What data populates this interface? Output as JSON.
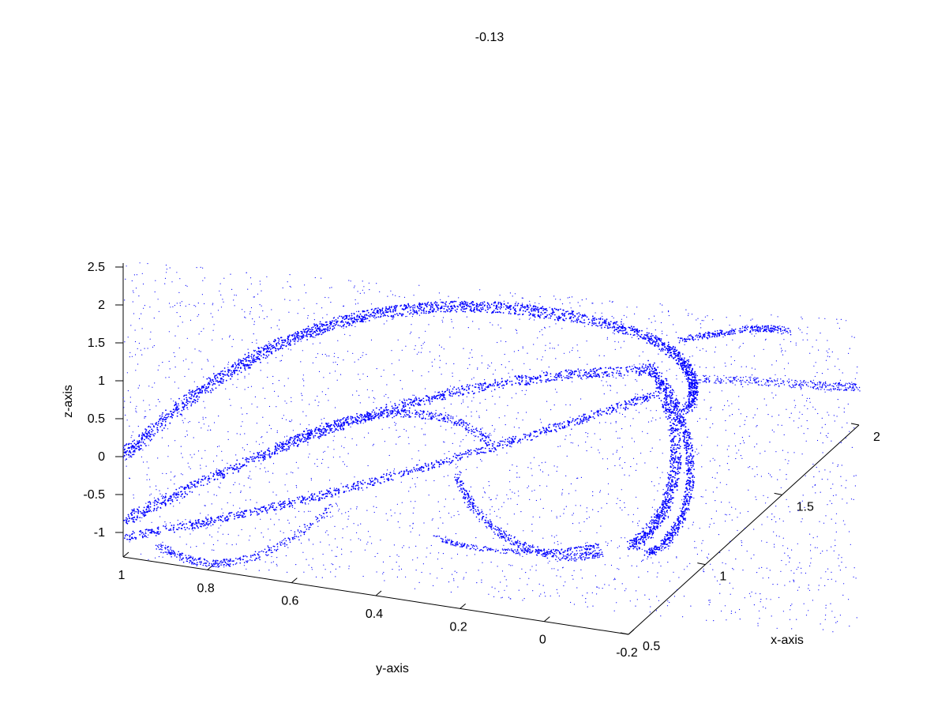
{
  "chart_data": {
    "type": "scatter",
    "projection": "3d",
    "title": "-0.13",
    "xlabel": "x-axis",
    "ylabel": "y-axis",
    "zlabel": "z-axis",
    "xlim": [
      0.5,
      2
    ],
    "ylim": [
      -0.2,
      1
    ],
    "zlim": [
      -1.3,
      2.6
    ],
    "x_ticks": [
      "0.5",
      "1",
      "1.5",
      "2"
    ],
    "y_ticks": [
      "1",
      "0.8",
      "0.6",
      "0.4",
      "0.2",
      "0",
      "-0.2"
    ],
    "z_ticks": [
      "2.5",
      "2",
      "1.5",
      "1",
      "0.5",
      "0",
      "-0.5",
      "-1"
    ],
    "grid": false,
    "marker": "point",
    "series_color": "#0000ff"
  }
}
